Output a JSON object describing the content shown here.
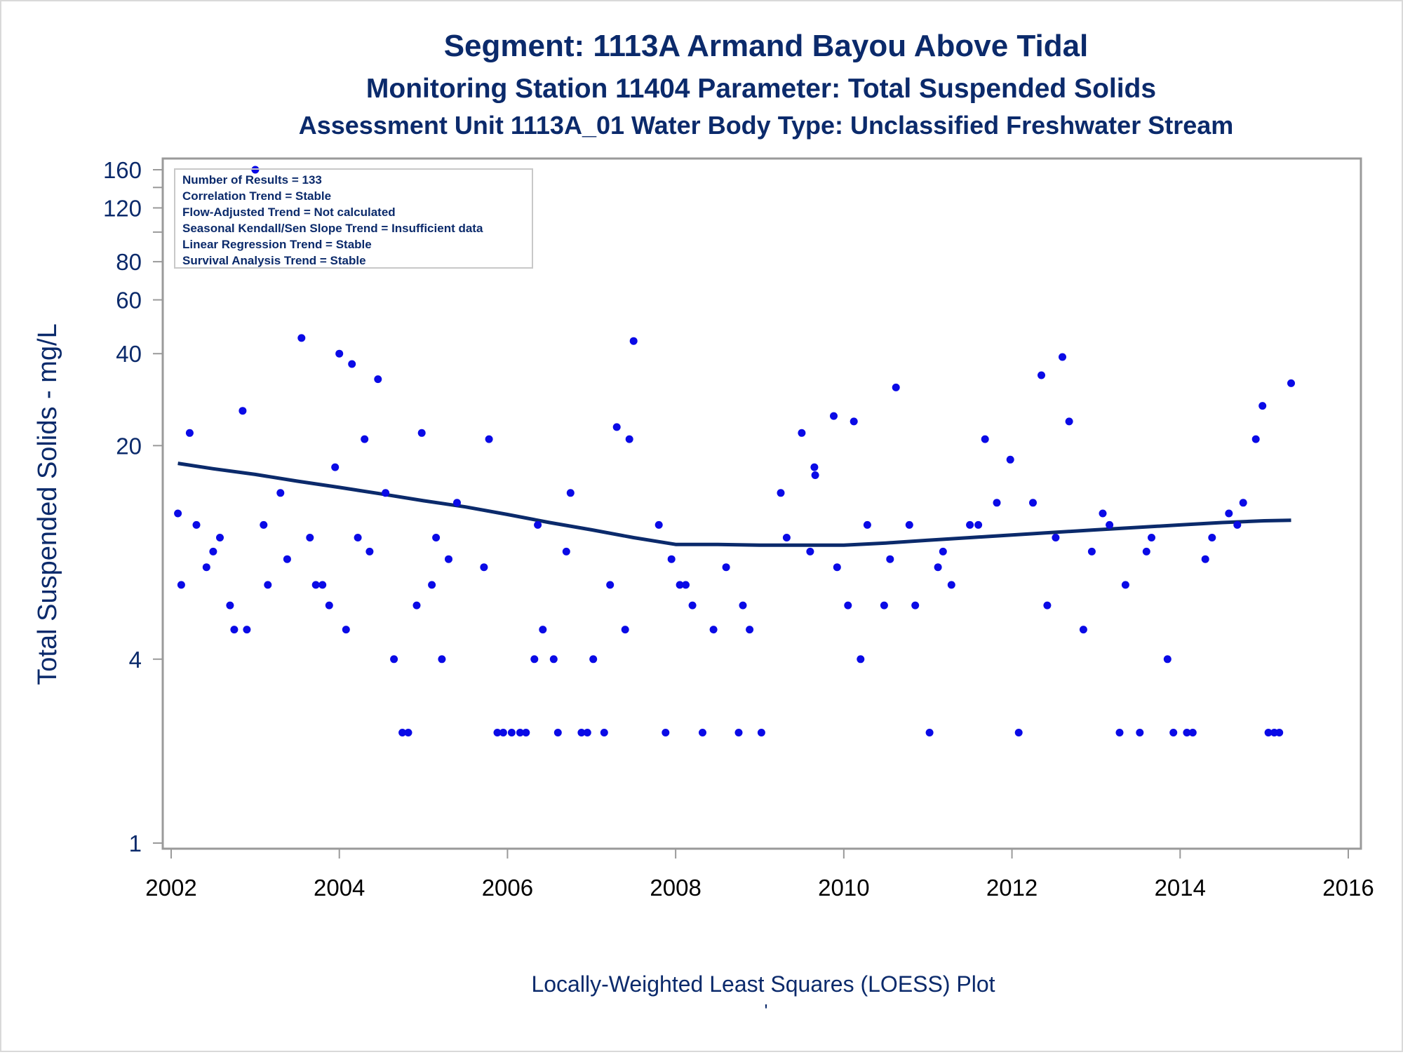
{
  "colors": {
    "text": "#0b2a6b",
    "points": "#0a0ae6",
    "loess": "#0b2a6b",
    "axis": "#9a9a9a",
    "legend_border": "#c8c8c8"
  },
  "chart_data": {
    "type": "scatter",
    "title": "Segment: 1113A  Armand Bayou Above Tidal",
    "subtitle": "Monitoring Station 11404 Parameter: Total Suspended Solids",
    "subtitle2": "Assessment Unit 1113A_01   Water Body Type: Unclassified Freshwater Stream",
    "xlabel": "",
    "ylabel": "Total Suspended Solids - mg/L",
    "footnote": "Locally-Weighted Least Squares (LOESS) Plot",
    "footnote_mark": "'",
    "x_scale": "linear",
    "y_scale": "log",
    "xlim": [
      2002,
      2016
    ],
    "ylim": [
      1,
      160
    ],
    "x_ticks": [
      2002,
      2004,
      2006,
      2008,
      2010,
      2012,
      2014,
      2016
    ],
    "y_ticks": [
      1,
      4,
      20,
      40,
      60,
      80,
      120,
      160
    ],
    "y_minor_ticks": [
      100,
      140
    ],
    "grid": false,
    "legend_position": "top-left",
    "info_box": [
      "Number of Results = 133",
      "Correlation Trend = Stable",
      "Flow-Adjusted Trend = Not calculated",
      "Seasonal Kendall/Sen Slope Trend = Insufficient data",
      "Linear Regression Trend = Stable",
      "Survival Analysis Trend = Stable"
    ],
    "series": [
      {
        "type": "scatter",
        "points": [
          [
            2002.08,
            12
          ],
          [
            2002.12,
            7
          ],
          [
            2002.22,
            22
          ],
          [
            2002.3,
            11
          ],
          [
            2002.42,
            8
          ],
          [
            2002.5,
            9
          ],
          [
            2002.58,
            10
          ],
          [
            2002.7,
            6
          ],
          [
            2002.75,
            5
          ],
          [
            2002.85,
            26
          ],
          [
            2002.9,
            5
          ],
          [
            2003.0,
            160
          ],
          [
            2003.1,
            11
          ],
          [
            2003.15,
            7
          ],
          [
            2003.3,
            14
          ],
          [
            2003.38,
            8.5
          ],
          [
            2003.55,
            45
          ],
          [
            2003.65,
            10
          ],
          [
            2003.72,
            7
          ],
          [
            2003.8,
            7
          ],
          [
            2003.88,
            6
          ],
          [
            2003.95,
            17
          ],
          [
            2004.0,
            40
          ],
          [
            2004.08,
            5
          ],
          [
            2004.15,
            37
          ],
          [
            2004.22,
            10
          ],
          [
            2004.3,
            21
          ],
          [
            2004.36,
            9
          ],
          [
            2004.46,
            33
          ],
          [
            2004.55,
            14
          ],
          [
            2004.65,
            4
          ],
          [
            2004.75,
            2.3
          ],
          [
            2004.82,
            2.3
          ],
          [
            2004.92,
            6
          ],
          [
            2004.98,
            22
          ],
          [
            2005.1,
            7
          ],
          [
            2005.15,
            10
          ],
          [
            2005.22,
            4
          ],
          [
            2005.3,
            8.5
          ],
          [
            2005.4,
            13
          ],
          [
            2005.72,
            8
          ],
          [
            2005.78,
            21
          ],
          [
            2005.88,
            2.3
          ],
          [
            2005.95,
            2.3
          ],
          [
            2006.05,
            2.3
          ],
          [
            2006.15,
            2.3
          ],
          [
            2006.22,
            2.3
          ],
          [
            2006.32,
            4
          ],
          [
            2006.36,
            11
          ],
          [
            2006.42,
            5
          ],
          [
            2006.55,
            4
          ],
          [
            2006.6,
            2.3
          ],
          [
            2006.7,
            9
          ],
          [
            2006.75,
            14
          ],
          [
            2006.88,
            2.3
          ],
          [
            2006.95,
            2.3
          ],
          [
            2007.02,
            4
          ],
          [
            2007.15,
            2.3
          ],
          [
            2007.22,
            7
          ],
          [
            2007.3,
            23
          ],
          [
            2007.4,
            5
          ],
          [
            2007.45,
            21
          ],
          [
            2007.5,
            44
          ],
          [
            2007.8,
            11
          ],
          [
            2007.88,
            2.3
          ],
          [
            2007.95,
            8.5
          ],
          [
            2008.05,
            7
          ],
          [
            2008.12,
            7
          ],
          [
            2008.2,
            6
          ],
          [
            2008.32,
            2.3
          ],
          [
            2008.45,
            5
          ],
          [
            2008.6,
            8
          ],
          [
            2008.75,
            2.3
          ],
          [
            2008.8,
            6
          ],
          [
            2008.88,
            5
          ],
          [
            2009.02,
            2.3
          ],
          [
            2009.25,
            14
          ],
          [
            2009.32,
            10
          ],
          [
            2009.5,
            22
          ],
          [
            2009.6,
            9
          ],
          [
            2009.65,
            17
          ],
          [
            2009.66,
            16
          ],
          [
            2009.88,
            25
          ],
          [
            2009.92,
            8
          ],
          [
            2010.05,
            6
          ],
          [
            2010.12,
            24
          ],
          [
            2010.2,
            4
          ],
          [
            2010.28,
            11
          ],
          [
            2010.48,
            6
          ],
          [
            2010.55,
            8.5
          ],
          [
            2010.62,
            31
          ],
          [
            2010.78,
            11
          ],
          [
            2010.85,
            6
          ],
          [
            2011.02,
            2.3
          ],
          [
            2011.12,
            8
          ],
          [
            2011.18,
            9
          ],
          [
            2011.28,
            7
          ],
          [
            2011.5,
            11
          ],
          [
            2011.6,
            11
          ],
          [
            2011.68,
            21
          ],
          [
            2011.82,
            13
          ],
          [
            2011.98,
            18
          ],
          [
            2012.08,
            2.3
          ],
          [
            2012.25,
            13
          ],
          [
            2012.35,
            34
          ],
          [
            2012.42,
            6
          ],
          [
            2012.52,
            10
          ],
          [
            2012.6,
            39
          ],
          [
            2012.68,
            24
          ],
          [
            2012.85,
            5
          ],
          [
            2012.95,
            9
          ],
          [
            2013.08,
            12
          ],
          [
            2013.16,
            11
          ],
          [
            2013.28,
            2.3
          ],
          [
            2013.35,
            7
          ],
          [
            2013.52,
            2.3
          ],
          [
            2013.6,
            9
          ],
          [
            2013.66,
            10
          ],
          [
            2013.85,
            4
          ],
          [
            2013.92,
            2.3
          ],
          [
            2014.08,
            2.3
          ],
          [
            2014.15,
            2.3
          ],
          [
            2014.3,
            8.5
          ],
          [
            2014.38,
            10
          ],
          [
            2014.58,
            12
          ],
          [
            2014.68,
            11
          ],
          [
            2014.75,
            13
          ],
          [
            2014.9,
            21
          ],
          [
            2014.98,
            27
          ],
          [
            2015.05,
            2.3
          ],
          [
            2015.12,
            2.3
          ],
          [
            2015.18,
            2.3
          ],
          [
            2015.32,
            32
          ]
        ]
      },
      {
        "type": "line",
        "points": [
          [
            2002.08,
            17.5
          ],
          [
            2002.5,
            16.8
          ],
          [
            2003.0,
            16.1
          ],
          [
            2003.5,
            15.3
          ],
          [
            2004.0,
            14.6
          ],
          [
            2004.5,
            13.9
          ],
          [
            2005.0,
            13.2
          ],
          [
            2005.5,
            12.6
          ],
          [
            2006.0,
            11.9
          ],
          [
            2006.5,
            11.2
          ],
          [
            2007.0,
            10.6
          ],
          [
            2007.5,
            10.0
          ],
          [
            2008.0,
            9.5
          ],
          [
            2008.5,
            9.5
          ],
          [
            2009.0,
            9.45
          ],
          [
            2009.5,
            9.45
          ],
          [
            2010.0,
            9.45
          ],
          [
            2010.5,
            9.6
          ],
          [
            2011.0,
            9.8
          ],
          [
            2011.5,
            10.0
          ],
          [
            2012.0,
            10.2
          ],
          [
            2012.5,
            10.4
          ],
          [
            2013.0,
            10.6
          ],
          [
            2013.5,
            10.8
          ],
          [
            2014.0,
            11.0
          ],
          [
            2014.5,
            11.2
          ],
          [
            2015.0,
            11.35
          ],
          [
            2015.32,
            11.4
          ]
        ]
      }
    ]
  }
}
